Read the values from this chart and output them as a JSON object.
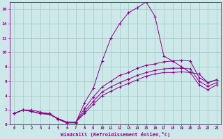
{
  "xlabel": "Windchill (Refroidissement éolien,°C)",
  "background_color": "#cce8e8",
  "grid_color": "#aacccc",
  "line_color": "#880088",
  "xlim": [
    -0.5,
    23.5
  ],
  "ylim": [
    0,
    17
  ],
  "xticks": [
    0,
    1,
    2,
    3,
    4,
    5,
    6,
    7,
    8,
    9,
    10,
    11,
    12,
    13,
    14,
    15,
    16,
    17,
    18,
    19,
    20,
    21,
    22,
    23
  ],
  "yticks": [
    0,
    2,
    4,
    6,
    8,
    10,
    12,
    14,
    16
  ],
  "curve1_x": [
    0,
    1,
    2,
    3,
    4,
    5,
    6,
    7,
    8,
    9,
    10,
    11,
    12,
    13,
    14,
    15,
    16,
    17,
    18,
    19,
    20,
    21,
    22,
    23
  ],
  "curve1_y": [
    1.5,
    2.0,
    2.0,
    1.7,
    1.5,
    0.7,
    0.2,
    0.2,
    3.0,
    5.0,
    8.8,
    12.0,
    14.0,
    15.5,
    16.2,
    17.0,
    15.0,
    9.5,
    8.8,
    8.0,
    7.2,
    7.0,
    5.8,
    6.2
  ],
  "curve2_x": [
    0,
    1,
    2,
    3,
    4,
    5,
    6,
    7,
    8,
    9,
    10,
    11,
    12,
    13,
    14,
    15,
    16,
    17,
    18,
    19,
    20,
    21,
    22,
    23
  ],
  "curve2_y": [
    1.5,
    2.0,
    1.8,
    1.5,
    1.5,
    0.8,
    0.3,
    0.3,
    2.2,
    3.8,
    5.2,
    6.0,
    6.8,
    7.2,
    7.8,
    8.2,
    8.4,
    8.7,
    8.8,
    8.9,
    8.8,
    6.5,
    5.8,
    6.2
  ],
  "curve3_x": [
    0,
    1,
    2,
    3,
    4,
    5,
    6,
    7,
    8,
    9,
    10,
    11,
    12,
    13,
    14,
    15,
    16,
    17,
    18,
    19,
    20,
    21,
    22,
    23
  ],
  "curve3_y": [
    1.5,
    2.0,
    1.8,
    1.5,
    1.4,
    0.8,
    0.3,
    0.3,
    1.8,
    3.2,
    4.5,
    5.2,
    5.8,
    6.3,
    6.8,
    7.2,
    7.5,
    7.7,
    7.8,
    7.8,
    7.7,
    6.0,
    5.3,
    5.8
  ],
  "curve4_x": [
    0,
    1,
    2,
    3,
    4,
    5,
    6,
    7,
    8,
    9,
    10,
    11,
    12,
    13,
    14,
    15,
    16,
    17,
    18,
    19,
    20,
    21,
    22,
    23
  ],
  "curve4_y": [
    1.5,
    2.0,
    1.8,
    1.5,
    1.4,
    0.8,
    0.3,
    0.3,
    1.5,
    2.8,
    4.0,
    4.6,
    5.2,
    5.7,
    6.2,
    6.7,
    7.0,
    7.2,
    7.2,
    7.3,
    7.2,
    5.5,
    4.8,
    5.5
  ]
}
